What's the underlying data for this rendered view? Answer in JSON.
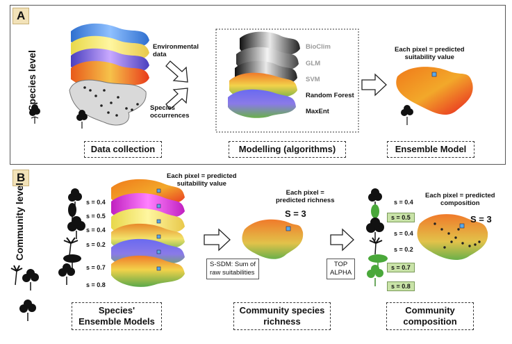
{
  "panel_a": {
    "letter": "A",
    "side_label": "Species level",
    "labels": {
      "env_data": [
        "Environmental",
        "data"
      ],
      "occurrences": [
        "Species",
        "occurrences"
      ],
      "each_pixel": [
        "Each pixel = predicted",
        "suitability value"
      ]
    },
    "algorithms": [
      "BioClim",
      "GLM",
      "SVM",
      "Random Forest",
      "MaxEnt"
    ],
    "boxes": {
      "data_collection": "Data collection",
      "modelling": "Modelling (algorithms)",
      "ensemble": "Ensemble Model"
    }
  },
  "panel_b": {
    "letter": "B",
    "side_label": "Community level",
    "labels": {
      "each_pixel_suit": [
        "Each pixel = predicted",
        "suitability value"
      ],
      "each_pixel_rich": [
        "Each pixel =",
        "predicted richness"
      ],
      "each_pixel_comp": [
        "Each pixel = predicted",
        "composition"
      ],
      "ssdm": [
        "S-SDM: Sum of",
        "raw suitabilities"
      ],
      "top_alpha": [
        "TOP",
        "ALPHA"
      ],
      "s_rich": "S = 3",
      "s_comp": "S = 3"
    },
    "s_values": [
      "s = 0.4",
      "s = 0.5",
      "s = 0.4",
      "s = 0.2",
      "s = 0.7",
      "s = 0.8"
    ],
    "selected_s": [
      "s = 0.5",
      "s = 0.7",
      "s = 0.8"
    ],
    "boxes": {
      "species_em": [
        "Species'",
        "Ensemble Models"
      ],
      "richness": [
        "Community species",
        "richness"
      ],
      "composition": [
        "Community",
        "composition"
      ]
    }
  },
  "colors": {
    "letter_bg": "#f2e2b8",
    "selected_bg": "#c9e3a8",
    "cell_marker": "#5aa9e6"
  }
}
